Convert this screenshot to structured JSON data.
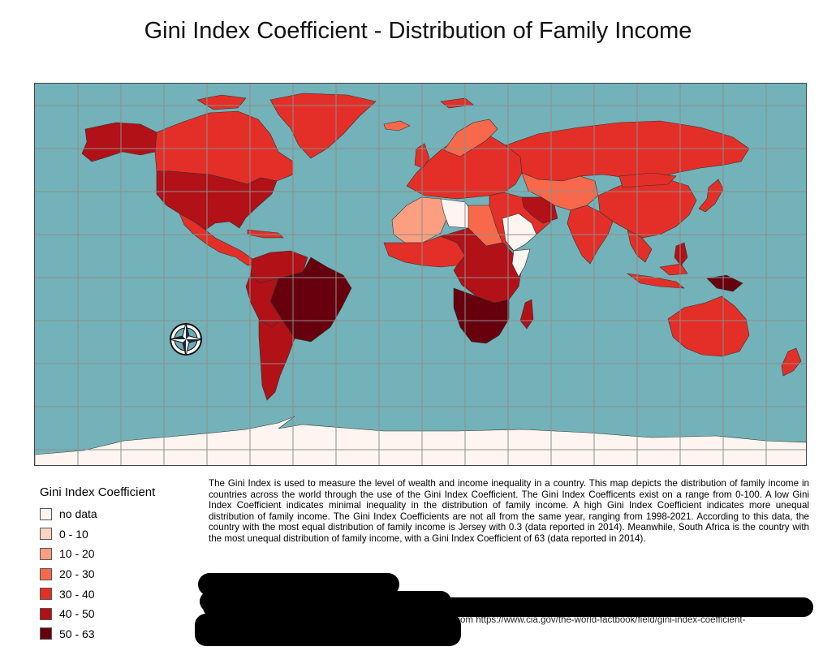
{
  "title": "Gini Index Coefficient - Distribution of Family Income",
  "colors": {
    "ocean": "#73b2b8",
    "grid": "#8e8e8e",
    "no_data": "#fff5f0",
    "c0_10": "#fdd3c1",
    "c10_20": "#fc9f81",
    "c20_30": "#f7694a",
    "c30_40": "#e32f27",
    "c40_50": "#b11117",
    "c50_63": "#67000d"
  },
  "legend": {
    "title": "Gini Index Coefficient",
    "items": [
      {
        "label": "no data",
        "color": "#fff5f0"
      },
      {
        "label": "0 - 10",
        "color": "#fdd3c1"
      },
      {
        "label": "10 - 20",
        "color": "#fc9f81"
      },
      {
        "label": "20 - 30",
        "color": "#f7694a"
      },
      {
        "label": "30 - 40",
        "color": "#e32f27"
      },
      {
        "label": "40 - 50",
        "color": "#b11117"
      },
      {
        "label": "50 - 63",
        "color": "#67000d"
      }
    ]
  },
  "description": "The Gini Index is used to measure the level of wealth and income inequality in a country. This map depicts the distribution of family income in countries across the world through the use of the Gini Index Coefficient. The Gini Index Coefficents exist on a range from 0-100. A low Gini Index Coefficient indicates minimal inequality in the distribution of family income. A high Gini Index Coefficient indicates more unequal distribution of family income. The Gini Index Coefficients are not all from the same year, ranging from 1998-2021. According to this data, the country with the most equal distribution of family income is Jersey with 0.3 (data reported in 2014). Meanwhile, South Africa is the country with the most unequal distribution of family income, with a Gini Index Coefficient of 63 (data reported in 2014).",
  "source_fragment": "from   https://www.cia.gov/the-world-factbook/field/gini-index-coefficient-",
  "compass": "north-arrow-icon"
}
